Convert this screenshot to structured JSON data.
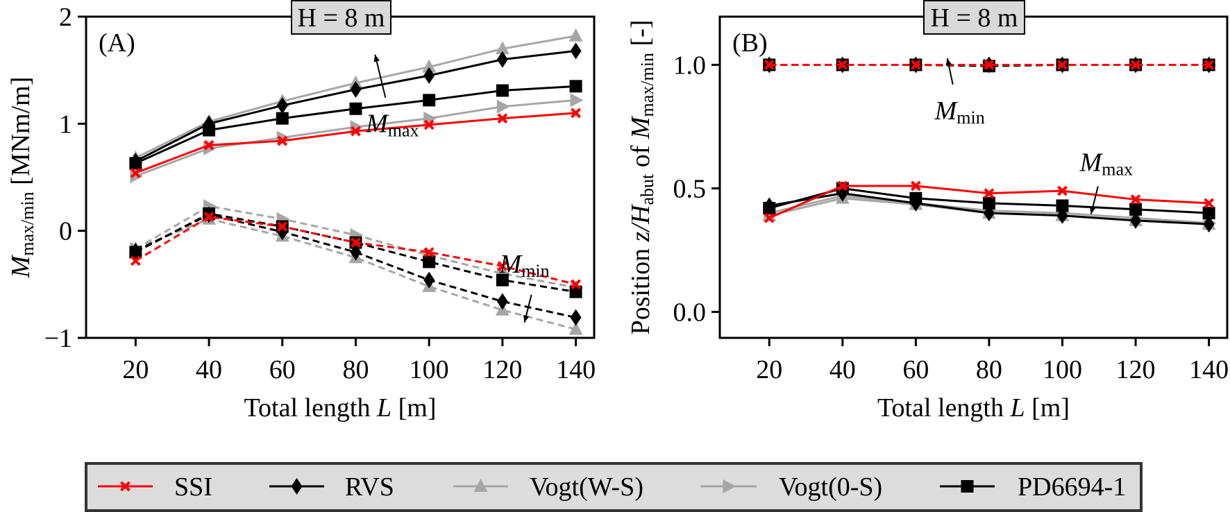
{
  "chart_data": [
    {
      "type": "line",
      "panel_label": "(A)",
      "title": "H = 8 m",
      "xlabel": "Total length L [m]",
      "xlabel_parts": [
        "Total length ",
        "L",
        " [m]"
      ],
      "ylabel_parts": [
        "M",
        "max/min",
        " [MNm/m]"
      ],
      "ylabel": "M_max/min [MNm/m]",
      "x": [
        20,
        40,
        60,
        80,
        100,
        120,
        140
      ],
      "xlim": [
        6.5,
        145
      ],
      "ylim": [
        -1,
        2
      ],
      "xticks": [
        "20",
        "40",
        "60",
        "80",
        "100",
        "120",
        "140"
      ],
      "yticks": [
        {
          "v": -1,
          "t": "−1"
        },
        {
          "v": 0,
          "t": "0"
        },
        {
          "v": 1,
          "t": "1"
        },
        {
          "v": 2,
          "t": "2"
        }
      ],
      "annotations": [
        {
          "main": "M",
          "sub": "max",
          "at": [
            90,
            0.92
          ]
        },
        {
          "main": "M",
          "sub": "min",
          "at": [
            126,
            -0.39
          ]
        }
      ],
      "series": [
        {
          "name": "SSI",
          "group": "max",
          "values": [
            0.54,
            0.8,
            0.84,
            0.93,
            0.99,
            1.05,
            1.1
          ]
        },
        {
          "name": "RVS",
          "group": "max",
          "values": [
            0.65,
            1.0,
            1.17,
            1.32,
            1.45,
            1.6,
            1.68
          ]
        },
        {
          "name": "Vogt(W-S)",
          "group": "max",
          "values": [
            0.68,
            1.02,
            1.21,
            1.38,
            1.53,
            1.7,
            1.82
          ]
        },
        {
          "name": "Vogt(0-S)",
          "group": "max",
          "values": [
            0.51,
            0.77,
            0.87,
            0.97,
            1.05,
            1.16,
            1.22
          ]
        },
        {
          "name": "PD6694-1",
          "group": "max",
          "values": [
            0.63,
            0.94,
            1.05,
            1.14,
            1.22,
            1.31,
            1.35
          ]
        },
        {
          "name": "SSI",
          "group": "min",
          "values": [
            -0.28,
            0.13,
            0.04,
            -0.11,
            -0.2,
            -0.33,
            -0.5
          ]
        },
        {
          "name": "RVS",
          "group": "min",
          "values": [
            -0.19,
            0.15,
            -0.01,
            -0.2,
            -0.46,
            -0.66,
            -0.81
          ]
        },
        {
          "name": "Vogt(W-S)",
          "group": "min",
          "values": [
            -0.17,
            0.11,
            -0.05,
            -0.25,
            -0.52,
            -0.74,
            -0.92
          ]
        },
        {
          "name": "Vogt(0-S)",
          "group": "min",
          "values": [
            -0.17,
            0.23,
            0.11,
            -0.04,
            -0.23,
            -0.4,
            -0.53
          ]
        },
        {
          "name": "PD6694-1",
          "group": "min",
          "values": [
            -0.2,
            0.16,
            0.04,
            -0.11,
            -0.29,
            -0.46,
            -0.57
          ]
        }
      ]
    },
    {
      "type": "line",
      "panel_label": "(B)",
      "title": "H = 8 m",
      "xlabel": "Total length L [m]",
      "xlabel_parts": [
        "Total length ",
        "L",
        " [m]"
      ],
      "ylabel": "Position z/H_abut of M_max/min [-]",
      "ylabel_parts": [
        "Position ",
        "z/H",
        "abut",
        " of ",
        "M",
        "max/min",
        " [-]"
      ],
      "x": [
        20,
        40,
        60,
        80,
        100,
        120,
        140
      ],
      "xlim": [
        6.5,
        145
      ],
      "ylim": [
        -0.105,
        1.195
      ],
      "xticks": [
        "20",
        "40",
        "60",
        "80",
        "100",
        "120",
        "140"
      ],
      "yticks": [
        {
          "v": 0,
          "t": "0.0"
        },
        {
          "v": 0.5,
          "t": "0.5"
        },
        {
          "v": 1,
          "t": "1.0"
        }
      ],
      "annotations": [
        {
          "main": "M",
          "sub": "min",
          "at": [
            72,
            0.78
          ]
        },
        {
          "main": "M",
          "sub": "max",
          "at": [
            112,
            0.57
          ]
        }
      ],
      "series": [
        {
          "name": "SSI",
          "group": "max",
          "values": [
            0.38,
            0.51,
            0.51,
            0.48,
            0.49,
            0.455,
            0.44
          ]
        },
        {
          "name": "RVS",
          "group": "max",
          "values": [
            0.43,
            0.48,
            0.44,
            0.4,
            0.39,
            0.37,
            0.355
          ]
        },
        {
          "name": "Vogt(W-S)",
          "group": "max",
          "values": [
            0.39,
            0.46,
            0.435,
            0.4,
            0.39,
            0.37,
            0.355
          ]
        },
        {
          "name": "Vogt(0-S)",
          "group": "max",
          "values": [
            0.4,
            0.47,
            0.44,
            0.41,
            0.4,
            0.38,
            0.36
          ]
        },
        {
          "name": "PD6694-1",
          "group": "max",
          "values": [
            0.42,
            0.5,
            0.46,
            0.44,
            0.43,
            0.415,
            0.4
          ]
        },
        {
          "name": "SSI",
          "group": "min",
          "values": [
            1.0,
            1.0,
            1.0,
            1.0,
            1.0,
            1.0,
            1.0
          ]
        },
        {
          "name": "RVS",
          "group": "min",
          "values": [
            1.0,
            1.0,
            1.0,
            1.0,
            1.0,
            1.0,
            1.0
          ]
        },
        {
          "name": "Vogt(W-S)",
          "group": "min",
          "values": [
            1.0,
            1.0,
            1.0,
            1.0,
            1.0,
            1.0,
            1.0
          ]
        },
        {
          "name": "Vogt(0-S)",
          "group": "min",
          "values": [
            1.0,
            1.0,
            1.0,
            1.0,
            1.0,
            1.0,
            1.0
          ]
        },
        {
          "name": "PD6694-1",
          "group": "min",
          "values": [
            1.0,
            1.0,
            1.0,
            0.995,
            1.0,
            1.0,
            1.0
          ]
        }
      ]
    }
  ],
  "legend": {
    "placement": "bottom",
    "entries": [
      {
        "name": "SSI",
        "color": "#ff0000",
        "marker": "x"
      },
      {
        "name": "RVS",
        "color": "#000000",
        "marker": "diamond"
      },
      {
        "name": "Vogt(W-S)",
        "color": "#a6a6a6",
        "marker": "triangle-up"
      },
      {
        "name": "Vogt(0-S)",
        "color": "#a6a6a6",
        "marker": "triangle-right"
      },
      {
        "name": "PD6694-1",
        "color": "#000000",
        "marker": "square"
      }
    ]
  }
}
